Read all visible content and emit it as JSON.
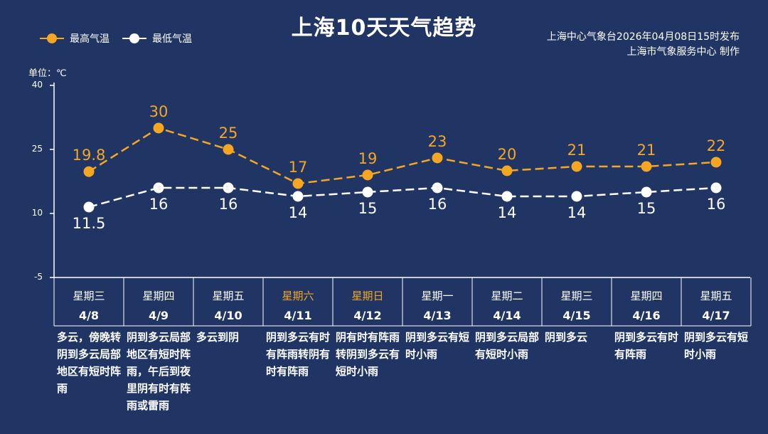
{
  "title": "上海10天天气趋势",
  "source": {
    "line1": "上海中心气象台2026年04月08日15时发布",
    "line2": "上海市气象服务中心  制作"
  },
  "unit_label": "单位：℃",
  "colors": {
    "background": "#213565",
    "high": "#F5A623",
    "low": "#FFFFFF",
    "weekend": "#F5A623",
    "axis": "#FFFFFF"
  },
  "chart_data": {
    "type": "line",
    "title": "上海10天天气趋势",
    "ylabel": "单位：℃",
    "ylim": [
      -5,
      40
    ],
    "yticks": [
      -5,
      10,
      25,
      40
    ],
    "grid": false,
    "legend_position": "top-left",
    "categories": [
      "4/8",
      "4/9",
      "4/10",
      "4/11",
      "4/12",
      "4/13",
      "4/14",
      "4/15",
      "4/16",
      "4/17"
    ],
    "weekdays": [
      "星期三",
      "星期四",
      "星期五",
      "星期六",
      "星期日",
      "星期一",
      "星期二",
      "星期三",
      "星期四",
      "星期五"
    ],
    "weekend": [
      false,
      false,
      false,
      true,
      true,
      false,
      false,
      false,
      false,
      false
    ],
    "series": [
      {
        "name": "最高气温",
        "values": [
          19.8,
          30,
          25,
          17,
          19,
          23,
          20,
          21,
          21,
          22
        ],
        "labels": [
          "19.8",
          "30",
          "25",
          "17",
          "19",
          "23",
          "20",
          "21",
          "21",
          "22"
        ]
      },
      {
        "name": "最低气温",
        "values": [
          11.5,
          16,
          16,
          14,
          15,
          16,
          14,
          14,
          15,
          16
        ],
        "labels": [
          "11.5",
          "16",
          "16",
          "14",
          "15",
          "16",
          "14",
          "14",
          "15",
          "16"
        ]
      }
    ],
    "descriptions": [
      "多云，傍晚转阴到多云局部地区有短时阵雨",
      "阴到多云局部地区有短时阵雨，午后到夜里阴有时有阵雨或雷雨",
      "多云到阴",
      "阴到多云有时有阵雨转阴有时有阵雨",
      "阴有时有阵雨转阴到多云有短时小雨",
      "阴到多云有短时小雨",
      "阴到多云局部有短时小雨",
      "阴到多云",
      "阴到多云有时有阵雨",
      "阴到多云有短时小雨"
    ]
  }
}
